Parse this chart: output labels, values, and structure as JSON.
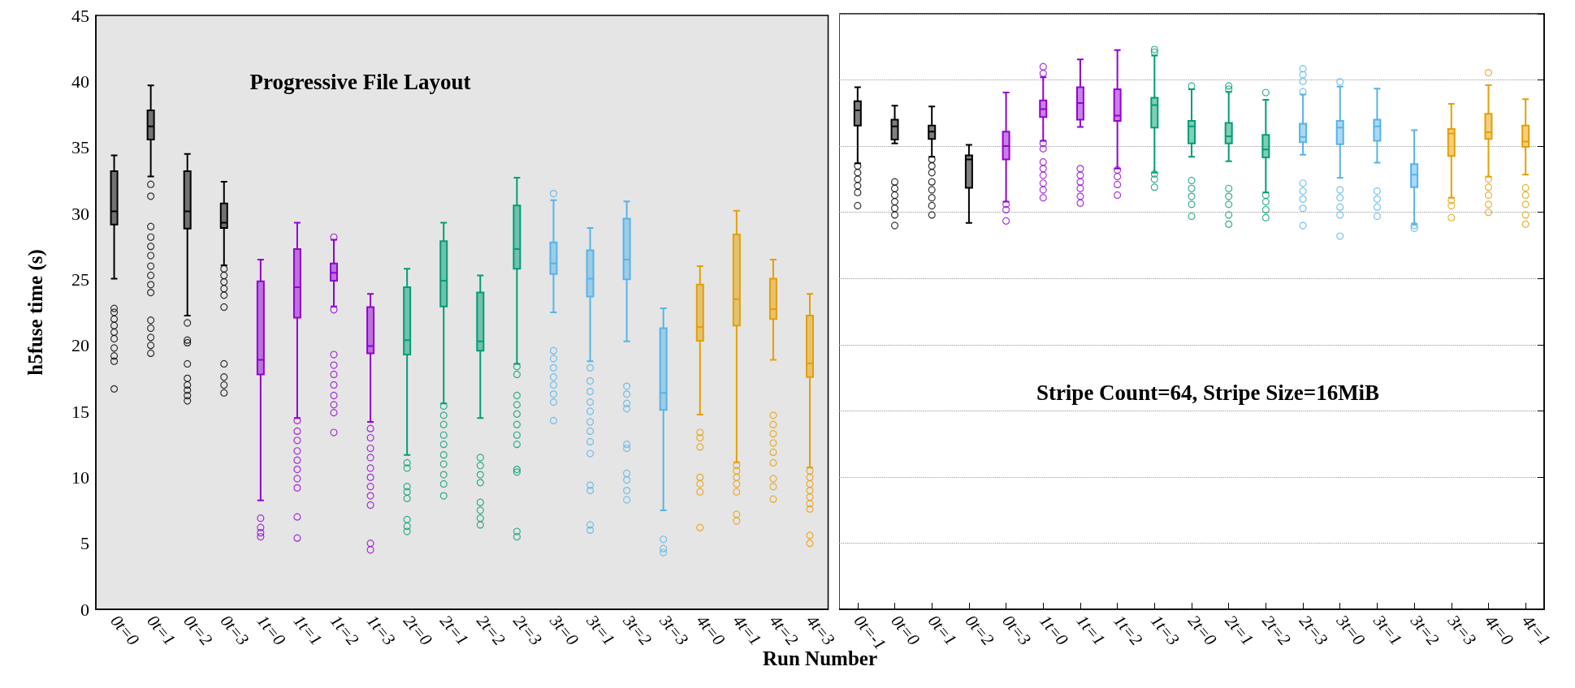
{
  "chart_data": [
    {
      "type": "box",
      "title": "Progressive File Layout",
      "ylabel": "h5fuse time (s)",
      "xlabel": "Run Number",
      "grid": false,
      "ylim": [
        0,
        45
      ],
      "yticks": [
        0,
        5,
        10,
        15,
        20,
        25,
        30,
        35,
        40,
        45
      ],
      "categories": [
        "0t=0",
        "0t=1",
        "0t=2",
        "0t=3",
        "1t=0",
        "1t=1",
        "1t=2",
        "1t=3",
        "2t=0",
        "2t=1",
        "2t=2",
        "2t=3",
        "3t=0",
        "3t=1",
        "3t=2",
        "3t=3",
        "4t=0",
        "4t=1",
        "4t=2",
        "4t=3"
      ],
      "colors": [
        "#000000",
        "#000000",
        "#000000",
        "#000000",
        "#9400d3",
        "#9400d3",
        "#9400d3",
        "#9400d3",
        "#009e73",
        "#009e73",
        "#009e73",
        "#009e73",
        "#56b4e9",
        "#56b4e9",
        "#56b4e9",
        "#56b4e9",
        "#e69f00",
        "#e69f00",
        "#e69f00",
        "#e69f00"
      ],
      "boxes": [
        {
          "low": 25.05,
          "q1": 29.15,
          "median": 30.15,
          "q3": 33.2,
          "high": 34.4,
          "outliers": [
            22.8,
            22.5,
            22.0,
            21.5,
            21.0,
            20.5,
            19.8,
            19.2,
            18.8,
            16.7
          ]
        },
        {
          "low": 32.8,
          "q1": 35.6,
          "median": 36.6,
          "q3": 37.8,
          "high": 39.7,
          "outliers": [
            32.2,
            31.3,
            29.0,
            28.2,
            27.5,
            26.8,
            26.0,
            25.3,
            24.6,
            24.0,
            21.9,
            21.3,
            20.6,
            20.0,
            19.4
          ]
        },
        {
          "low": 22.25,
          "q1": 28.85,
          "median": 30.15,
          "q3": 33.2,
          "high": 34.5,
          "outliers": [
            21.7,
            20.4,
            20.2,
            18.6,
            17.5,
            17.0,
            16.6,
            16.2,
            15.8
          ]
        },
        {
          "low": 26.07,
          "q1": 28.9,
          "median": 29.3,
          "q3": 30.75,
          "high": 32.4,
          "outliers": [
            25.8,
            25.3,
            24.8,
            24.3,
            23.8,
            22.9,
            18.6,
            17.6,
            17.0,
            16.4
          ]
        },
        {
          "low": 8.25,
          "q1": 17.8,
          "median": 18.9,
          "q3": 24.85,
          "high": 26.5,
          "outliers": [
            6.9,
            6.2,
            5.8,
            5.5
          ]
        },
        {
          "low": 14.5,
          "q1": 22.1,
          "median": 24.4,
          "q3": 27.3,
          "high": 29.3,
          "outliers": [
            14.3,
            13.5,
            12.8,
            12.0,
            11.3,
            10.6,
            9.9,
            9.2,
            7.0,
            5.4
          ]
        },
        {
          "low": 22.95,
          "q1": 24.9,
          "median": 25.5,
          "q3": 26.2,
          "high": 28.0,
          "outliers": [
            28.2,
            22.7,
            19.3,
            18.5,
            17.8,
            17.0,
            16.2,
            15.5,
            14.9,
            13.4
          ]
        },
        {
          "low": 14.2,
          "q1": 19.4,
          "median": 19.95,
          "q3": 22.9,
          "high": 23.9,
          "outliers": [
            13.7,
            13.0,
            12.2,
            11.5,
            10.7,
            10.0,
            9.3,
            8.6,
            7.9,
            5.0,
            4.5
          ]
        },
        {
          "low": 11.7,
          "q1": 19.3,
          "median": 20.4,
          "q3": 24.4,
          "high": 25.8,
          "outliers": [
            11.1,
            10.7,
            9.3,
            8.9,
            8.4,
            6.8,
            6.3,
            5.9
          ]
        },
        {
          "low": 15.6,
          "q1": 22.95,
          "median": 24.9,
          "q3": 27.9,
          "high": 29.3,
          "outliers": [
            15.4,
            14.7,
            14.0,
            13.2,
            12.5,
            11.7,
            11.0,
            10.2,
            9.5,
            8.6
          ]
        },
        {
          "low": 14.5,
          "q1": 19.6,
          "median": 20.3,
          "q3": 24.0,
          "high": 25.3,
          "outliers": [
            11.5,
            10.9,
            10.2,
            9.6,
            8.1,
            7.5,
            6.9,
            6.4
          ]
        },
        {
          "low": 18.6,
          "q1": 25.8,
          "median": 27.3,
          "q3": 30.6,
          "high": 32.7,
          "outliers": [
            18.4,
            17.8,
            16.2,
            15.5,
            14.8,
            14.0,
            13.2,
            12.5,
            10.6,
            10.4,
            5.9,
            5.5
          ]
        },
        {
          "low": 22.5,
          "q1": 25.4,
          "median": 26.2,
          "q3": 27.8,
          "high": 31.0,
          "outliers": [
            31.5,
            19.6,
            19.0,
            18.3,
            17.6,
            17.0,
            16.3,
            15.7,
            14.3
          ]
        },
        {
          "low": 18.8,
          "q1": 23.7,
          "median": 25.05,
          "q3": 27.2,
          "high": 28.9,
          "outliers": [
            18.3,
            17.3,
            16.5,
            15.7,
            15.0,
            14.2,
            13.5,
            12.7,
            11.8,
            9.4,
            9.0,
            6.4,
            6.0
          ]
        },
        {
          "low": 20.3,
          "q1": 25.0,
          "median": 26.5,
          "q3": 29.6,
          "high": 30.9,
          "outliers": [
            16.9,
            16.3,
            15.6,
            15.2,
            12.5,
            12.2,
            10.3,
            9.8,
            9.0,
            8.3
          ]
        },
        {
          "low": 7.5,
          "q1": 15.1,
          "median": 16.4,
          "q3": 21.3,
          "high": 22.8,
          "outliers": [
            5.3,
            4.6,
            4.3
          ]
        },
        {
          "low": 14.75,
          "q1": 20.35,
          "median": 21.4,
          "q3": 24.6,
          "high": 26.0,
          "outliers": [
            13.4,
            13.0,
            12.3,
            10.0,
            9.5,
            8.9,
            6.2
          ]
        },
        {
          "low": 11.15,
          "q1": 21.5,
          "median": 23.5,
          "q3": 28.4,
          "high": 30.2,
          "outliers": [
            10.9,
            10.5,
            10.0,
            9.5,
            8.9,
            7.2,
            6.7
          ]
        },
        {
          "low": 18.9,
          "q1": 22.0,
          "median": 22.75,
          "q3": 25.05,
          "high": 26.5,
          "outliers": [
            14.7,
            14.0,
            13.3,
            12.6,
            11.9,
            11.1,
            9.9,
            9.3,
            8.35
          ]
        },
        {
          "low": 10.75,
          "q1": 17.6,
          "median": 18.65,
          "q3": 22.25,
          "high": 23.9,
          "outliers": [
            10.5,
            10.0,
            9.5,
            9.0,
            8.5,
            8.0,
            7.6,
            5.6,
            5.0
          ]
        }
      ]
    },
    {
      "type": "box",
      "title": "Stripe Count=64, Stripe Size=16MiB",
      "grid": "y",
      "tick_labels": "x",
      "ylim": [
        0,
        45
      ],
      "yticks": [
        0,
        5,
        10,
        15,
        20,
        25,
        30,
        35,
        40,
        45
      ],
      "categories": [
        "0t=-1",
        "0t=0",
        "0t=1",
        "0t=2",
        "0t=3",
        "1t=0",
        "1t=1",
        "1t=2",
        "1t=3",
        "2t=0",
        "2t=1",
        "2t=2",
        "2t=3",
        "3t=0",
        "3t=1",
        "3t=2",
        "3t=3",
        "4t=0",
        "4t=1"
      ],
      "colors": [
        "#000000",
        "#000000",
        "#000000",
        "#000000",
        "#9400d3",
        "#9400d3",
        "#9400d3",
        "#9400d3",
        "#009e73",
        "#009e73",
        "#009e73",
        "#009e73",
        "#56b4e9",
        "#56b4e9",
        "#56b4e9",
        "#56b4e9",
        "#e69f00",
        "#e69f00",
        "#e69f00"
      ],
      "boxes": [
        {
          "low": 33.7,
          "q1": 36.55,
          "median": 37.7,
          "q3": 38.4,
          "high": 39.45,
          "outliers": [
            33.5,
            33.0,
            32.5,
            32.0,
            31.5,
            30.5
          ]
        },
        {
          "low": 35.2,
          "q1": 35.5,
          "median": 36.5,
          "q3": 37.0,
          "high": 38.05,
          "outliers": [
            32.3,
            31.8,
            31.3,
            30.8,
            30.3,
            29.8,
            29.0
          ]
        },
        {
          "low": 34.2,
          "q1": 35.55,
          "median": 36.1,
          "q3": 36.55,
          "high": 38.0,
          "outliers": [
            34.0,
            33.5,
            33.0,
            32.3,
            31.7,
            31.1,
            30.5,
            29.8
          ]
        },
        {
          "low": 29.2,
          "q1": 31.85,
          "median": 34.0,
          "q3": 34.3,
          "high": 35.1
        },
        {
          "low": 30.8,
          "q1": 34.0,
          "median": 35.0,
          "q3": 36.1,
          "high": 39.05,
          "outliers": [
            30.6,
            30.2,
            29.35
          ]
        },
        {
          "low": 35.4,
          "q1": 37.2,
          "median": 37.8,
          "q3": 38.45,
          "high": 40.2,
          "outliers": [
            41.0,
            40.5,
            35.2,
            34.8,
            33.8,
            33.3,
            32.8,
            32.2,
            31.7,
            31.1
          ]
        },
        {
          "low": 36.45,
          "q1": 37.0,
          "median": 38.25,
          "q3": 39.45,
          "high": 41.55,
          "outliers": [
            33.3,
            32.8,
            32.3,
            31.8,
            31.2,
            30.7
          ]
        },
        {
          "low": 33.3,
          "q1": 36.9,
          "median": 37.3,
          "q3": 39.3,
          "high": 42.25,
          "outliers": [
            33.2,
            32.7,
            32.1,
            31.3
          ]
        },
        {
          "low": 33.0,
          "q1": 36.4,
          "median": 38.1,
          "q3": 38.65,
          "high": 41.85,
          "outliers": [
            42.3,
            42.1,
            32.9,
            32.5,
            31.9
          ]
        },
        {
          "low": 34.2,
          "q1": 35.2,
          "median": 36.5,
          "q3": 36.9,
          "high": 39.3,
          "outliers": [
            39.55,
            32.4,
            31.8,
            31.2,
            30.6,
            29.7
          ]
        },
        {
          "low": 33.85,
          "q1": 35.2,
          "median": 35.75,
          "q3": 36.75,
          "high": 39.1,
          "outliers": [
            39.55,
            39.3,
            31.8,
            31.2,
            30.6,
            29.8,
            29.1
          ]
        },
        {
          "low": 31.5,
          "q1": 34.15,
          "median": 34.75,
          "q3": 35.85,
          "high": 38.5,
          "outliers": [
            39.05,
            31.3,
            30.8,
            30.2,
            29.6
          ]
        },
        {
          "low": 34.35,
          "q1": 35.3,
          "median": 35.7,
          "q3": 36.7,
          "high": 38.9,
          "outliers": [
            40.85,
            40.4,
            39.9,
            39.1,
            32.2,
            31.6,
            31.0,
            30.3,
            29.0
          ]
        },
        {
          "low": 32.6,
          "q1": 35.15,
          "median": 36.4,
          "q3": 36.9,
          "high": 39.5,
          "outliers": [
            39.85,
            31.7,
            31.1,
            30.4,
            29.8,
            28.2
          ]
        },
        {
          "low": 33.75,
          "q1": 35.4,
          "median": 36.5,
          "q3": 37.0,
          "high": 39.35,
          "outliers": [
            31.6,
            31.0,
            30.4,
            29.7
          ]
        },
        {
          "low": 29.1,
          "q1": 31.9,
          "median": 32.85,
          "q3": 33.65,
          "high": 36.2,
          "outliers": [
            29.0,
            28.8
          ]
        },
        {
          "low": 31.1,
          "q1": 34.25,
          "median": 35.95,
          "q3": 36.3,
          "high": 38.2,
          "outliers": [
            30.9,
            30.5,
            29.6
          ]
        },
        {
          "low": 32.7,
          "q1": 35.55,
          "median": 36.05,
          "q3": 37.45,
          "high": 39.6,
          "outliers": [
            40.55,
            32.5,
            31.9,
            31.3,
            30.6,
            30.0
          ]
        },
        {
          "low": 32.85,
          "q1": 34.95,
          "median": 35.35,
          "q3": 36.55,
          "high": 38.55,
          "outliers": [
            31.85,
            31.3,
            30.6,
            29.8,
            29.1
          ]
        }
      ]
    }
  ]
}
